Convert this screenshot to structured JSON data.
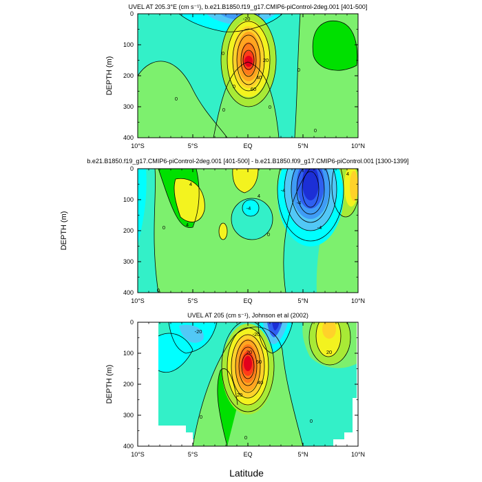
{
  "figure": {
    "xlabel": "Latitude",
    "shared_ylabel": "DEPTH (m)"
  },
  "chart_data": [
    {
      "type": "heatmap",
      "subtype": "filled-contour",
      "title": "UVEL AT 205.3°E (cm s⁻¹), b.e21.B1850.f19_g17.CMIP6-piControl-2deg.001 [401-500]",
      "ylabel": "DEPTH (m)",
      "xticks": [
        "10°S",
        "5°S",
        "EQ",
        "5°N",
        "10°N"
      ],
      "xtick_values": [
        -10,
        -5,
        0,
        5,
        10
      ],
      "yticks": [
        "0",
        "100",
        "200",
        "300",
        "400"
      ],
      "ytick_values": [
        0,
        100,
        200,
        300,
        400
      ],
      "xlim": [
        -10,
        10
      ],
      "ylim": [
        400,
        0
      ],
      "contour_interval": 10,
      "contour_labels": [
        "-20",
        "0",
        "20",
        "40",
        "60",
        "0",
        "0",
        "0",
        "0",
        "0",
        "0"
      ],
      "features": [
        {
          "name": "Equatorial Undercurrent core",
          "lat": 0,
          "depth": 150,
          "max": 70
        },
        {
          "name": "South Equatorial Current (surface)",
          "lat": 0,
          "depth": 0,
          "min": -30
        },
        {
          "name": "North Equatorial Countercurrent",
          "lat": 7,
          "depth": 50,
          "max": 10
        }
      ]
    },
    {
      "type": "heatmap",
      "subtype": "filled-contour (difference)",
      "title": "b.e21.B1850.f19_g17.CMIP6-piControl-2deg.001 [401-500] - b.e21.B1850.f09_g17.CMIP6-piControl.001 [1300-1399]",
      "ylabel": "DEPTH (m)",
      "xticks": [
        "10°S",
        "5°S",
        "EQ",
        "5°N",
        "10°N"
      ],
      "xtick_values": [
        -10,
        -5,
        0,
        5,
        10
      ],
      "yticks": [
        "0",
        "100",
        "200",
        "300",
        "400"
      ],
      "ytick_values": [
        0,
        100,
        200,
        300,
        400
      ],
      "xlim": [
        -10,
        10
      ],
      "ylim": [
        400,
        0
      ],
      "contour_interval": 2,
      "contour_labels": [
        "4",
        "4",
        "4",
        "-4",
        "-4",
        "-4",
        "-4",
        "0",
        "0",
        "0",
        "4"
      ],
      "features": [
        {
          "name": "negative anomaly",
          "lat": 5.8,
          "depth": 50,
          "min": -12
        },
        {
          "name": "positive anomaly",
          "lat": -4.8,
          "depth": 80,
          "max": 6
        },
        {
          "name": "positive anomaly",
          "lat": 9.8,
          "depth": 50,
          "max": 6
        },
        {
          "name": "negative anomaly",
          "lat": 0,
          "depth": 120,
          "min": -6
        }
      ]
    },
    {
      "type": "heatmap",
      "subtype": "filled-contour",
      "title": "UVEL AT 205 (cm s⁻¹), Johnson et al (2002)",
      "ylabel": "DEPTH (m)",
      "xticks": [
        "10°S",
        "5°S",
        "EQ",
        "5°N",
        "10°N"
      ],
      "xtick_values": [
        -10,
        -5,
        0,
        5,
        10
      ],
      "yticks": [
        "0",
        "100",
        "200",
        "300",
        "400"
      ],
      "ytick_values": [
        0,
        100,
        200,
        300,
        400
      ],
      "xlim": [
        -10,
        10
      ],
      "ylim": [
        400,
        0
      ],
      "contour_interval": 10,
      "contour_labels": [
        "-20",
        "-20",
        "20",
        "40",
        "60",
        "20",
        "20",
        "0",
        "0",
        "0"
      ],
      "features": [
        {
          "name": "Equatorial Undercurrent core",
          "lat": 0,
          "depth": 130,
          "max": 80
        },
        {
          "name": "surface westward flow",
          "lat": 2,
          "depth": 20,
          "min": -40
        },
        {
          "name": "North Equatorial Countercurrent",
          "lat": 7,
          "depth": 40,
          "max": 30
        }
      ]
    }
  ],
  "colors": {
    "scale": [
      "#1c2fd6",
      "#2f60f0",
      "#3f9cf6",
      "#52c8f6",
      "#00ffff",
      "#33f0c8",
      "#7df06e",
      "#00e000",
      "#a8ea36",
      "#f3f31f",
      "#ffd22a",
      "#ffa520",
      "#ff7a1a",
      "#ff3c18",
      "#e3001c"
    ],
    "contour_line": "#000000",
    "no_data": "#ffffff"
  }
}
